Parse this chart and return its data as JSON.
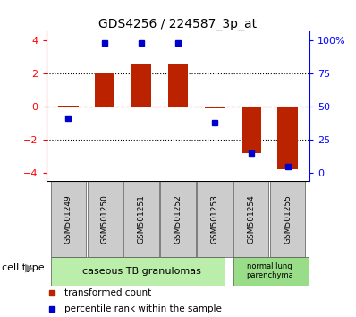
{
  "title": "GDS4256 / 224587_3p_at",
  "samples": [
    "GSM501249",
    "GSM501250",
    "GSM501251",
    "GSM501252",
    "GSM501253",
    "GSM501254",
    "GSM501255"
  ],
  "red_bars": [
    0.05,
    2.05,
    2.55,
    2.5,
    -0.12,
    -2.85,
    -3.8
  ],
  "blue_dots_left_axis": [
    -0.75,
    3.82,
    3.82,
    3.82,
    -1.0,
    -2.85,
    -3.65
  ],
  "ylim": [
    -4.5,
    4.5
  ],
  "yticks_left": [
    -4,
    -2,
    0,
    2,
    4
  ],
  "yticks_right_vals": [
    0,
    25,
    50,
    75,
    100
  ],
  "yticks_right_pos": [
    -4.0,
    -2.0,
    0.0,
    2.0,
    4.0
  ],
  "cell_type_label": "cell type",
  "group1_label": "caseous TB granulomas",
  "group2_label": "normal lung\nparenchyma",
  "legend_red": "transformed count",
  "legend_blue": "percentile rank within the sample",
  "bar_color": "#bb2200",
  "dot_color": "#0000cc",
  "group1_color": "#bbeeaa",
  "group2_color": "#99dd88",
  "bar_width": 0.55,
  "hline_color": "#cc0000",
  "dotted_color": "#000000",
  "sample_box_color": "#cccccc",
  "fig_w": 3.98,
  "fig_h": 3.54,
  "dpi": 100
}
